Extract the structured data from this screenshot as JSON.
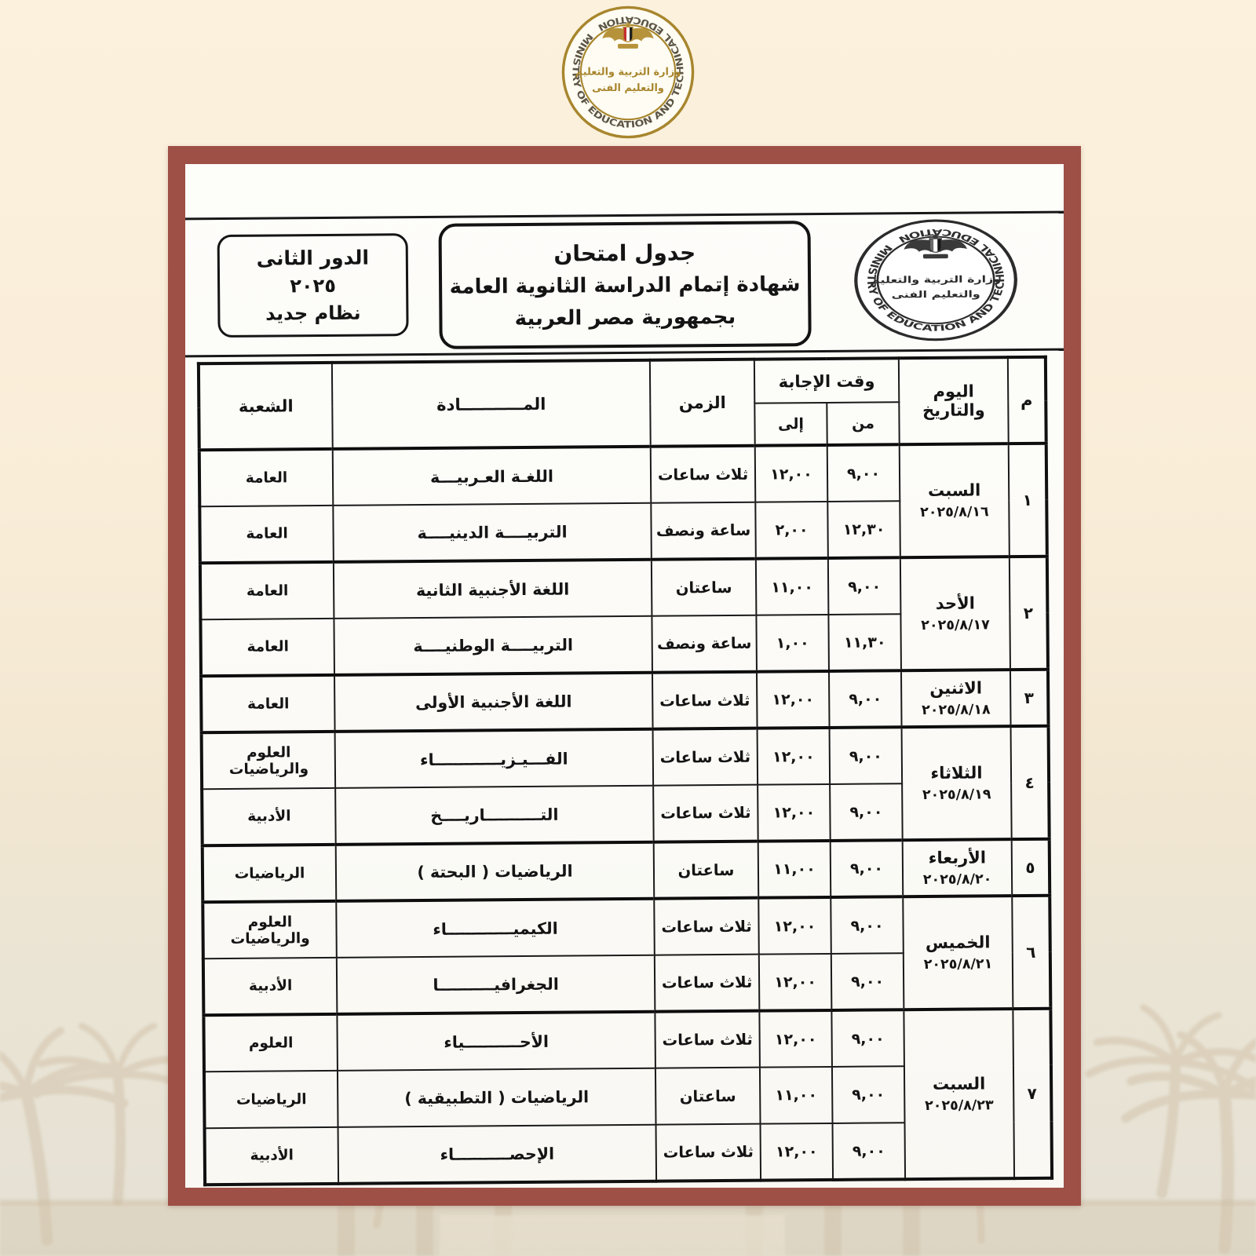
{
  "seal": {
    "ministry_en": "MINISTRY OF EDUCATION AND TECHNICAL EDUCATION",
    "ministry_ar_line1": "وزارة التربية والتعليم",
    "ministry_ar_line2": "والتعليم الفنى"
  },
  "round_box": {
    "line1": "الدور الثانى",
    "line2": "٢٠٢٥",
    "line3": "نظام جديد"
  },
  "title_box": {
    "line1": "جدول امتحان",
    "line2": "شهادة إتمام الدراسة الثانوية العامة",
    "line3": "بجمهورية مصر العربية"
  },
  "table": {
    "headers": {
      "num": "م",
      "day": "اليوم والتاريخ",
      "answer_time": "وقت الإجابة",
      "from": "من",
      "to": "إلى",
      "duration": "الزمن",
      "subject": "المـــــــــــادة",
      "branch": "الشعبة"
    },
    "days": [
      {
        "num": "١",
        "day": "السبت",
        "date": "٢٠٢٥/٨/١٦",
        "exams": [
          {
            "subject": "اللغـة العـربيـــة",
            "duration": "ثلاث ساعات",
            "from": "٩,٠٠",
            "to": "١٢,٠٠",
            "branch": "العامة"
          },
          {
            "subject": "التربيــــة الدينيــــة",
            "duration": "ساعة ونصف",
            "from": "١٢,٣٠",
            "to": "٢,٠٠",
            "branch": "العامة"
          }
        ]
      },
      {
        "num": "٢",
        "day": "الأحد",
        "date": "٢٠٢٥/٨/١٧",
        "exams": [
          {
            "subject": "اللغة الأجنبية الثانية",
            "duration": "ساعتان",
            "from": "٩,٠٠",
            "to": "١١,٠٠",
            "branch": "العامة"
          },
          {
            "subject": "التربيــــة الوطنيــــة",
            "duration": "ساعة ونصف",
            "from": "١١,٣٠",
            "to": "١,٠٠",
            "branch": "العامة"
          }
        ]
      },
      {
        "num": "٣",
        "day": "الاثنين",
        "date": "٢٠٢٥/٨/١٨",
        "exams": [
          {
            "subject": "اللغة الأجنبية الأولى",
            "duration": "ثلاث ساعات",
            "from": "٩,٠٠",
            "to": "١٢,٠٠",
            "branch": "العامة"
          }
        ]
      },
      {
        "num": "٤",
        "day": "الثلاثاء",
        "date": "٢٠٢٥/٨/١٩",
        "exams": [
          {
            "subject": "الفـــيـزيــــــــــــاء",
            "duration": "ثلاث ساعات",
            "from": "٩,٠٠",
            "to": "١٢,٠٠",
            "branch": "العلوم والرياضيات"
          },
          {
            "subject": "التــــــــــاريــــخ",
            "duration": "ثلاث ساعات",
            "from": "٩,٠٠",
            "to": "١٢,٠٠",
            "branch": "الأدبية"
          }
        ]
      },
      {
        "num": "٥",
        "day": "الأربعاء",
        "date": "٢٠٢٥/٨/٢٠",
        "exams": [
          {
            "subject": "الرياضيات ( البحتة )",
            "duration": "ساعتان",
            "from": "٩,٠٠",
            "to": "١١,٠٠",
            "branch": "الرياضيات"
          }
        ]
      },
      {
        "num": "٦",
        "day": "الخميس",
        "date": "٢٠٢٥/٨/٢١",
        "exams": [
          {
            "subject": "الكيميــــــــــــاء",
            "duration": "ثلاث ساعات",
            "from": "٩,٠٠",
            "to": "١٢,٠٠",
            "branch": "العلوم والرياضيات"
          },
          {
            "subject": "الجغرافيــــــــــا",
            "duration": "ثلاث ساعات",
            "from": "٩,٠٠",
            "to": "١٢,٠٠",
            "branch": "الأدبية"
          }
        ]
      },
      {
        "num": "٧",
        "day": "السبت",
        "date": "٢٠٢٥/٨/٢٣",
        "exams": [
          {
            "subject": "الأحــــــــــياء",
            "duration": "ثلاث ساعات",
            "from": "٩,٠٠",
            "to": "١٢,٠٠",
            "branch": "العلوم"
          },
          {
            "subject": "الرياضيات ( التطبيقية )",
            "duration": "ساعتان",
            "from": "٩,٠٠",
            "to": "١١,٠٠",
            "branch": "الرياضيات"
          },
          {
            "subject": "الإحصــــــــــاء",
            "duration": "ثلاث ساعات",
            "from": "٩,٠٠",
            "to": "١٢,٠٠",
            "branch": "الأدبية"
          }
        ]
      }
    ]
  },
  "colors": {
    "background": "#f9edd8",
    "frame": "#9e4f46",
    "seal_gold": "#a8862e",
    "flag_red": "#c42f2f",
    "ink": "#141414"
  }
}
